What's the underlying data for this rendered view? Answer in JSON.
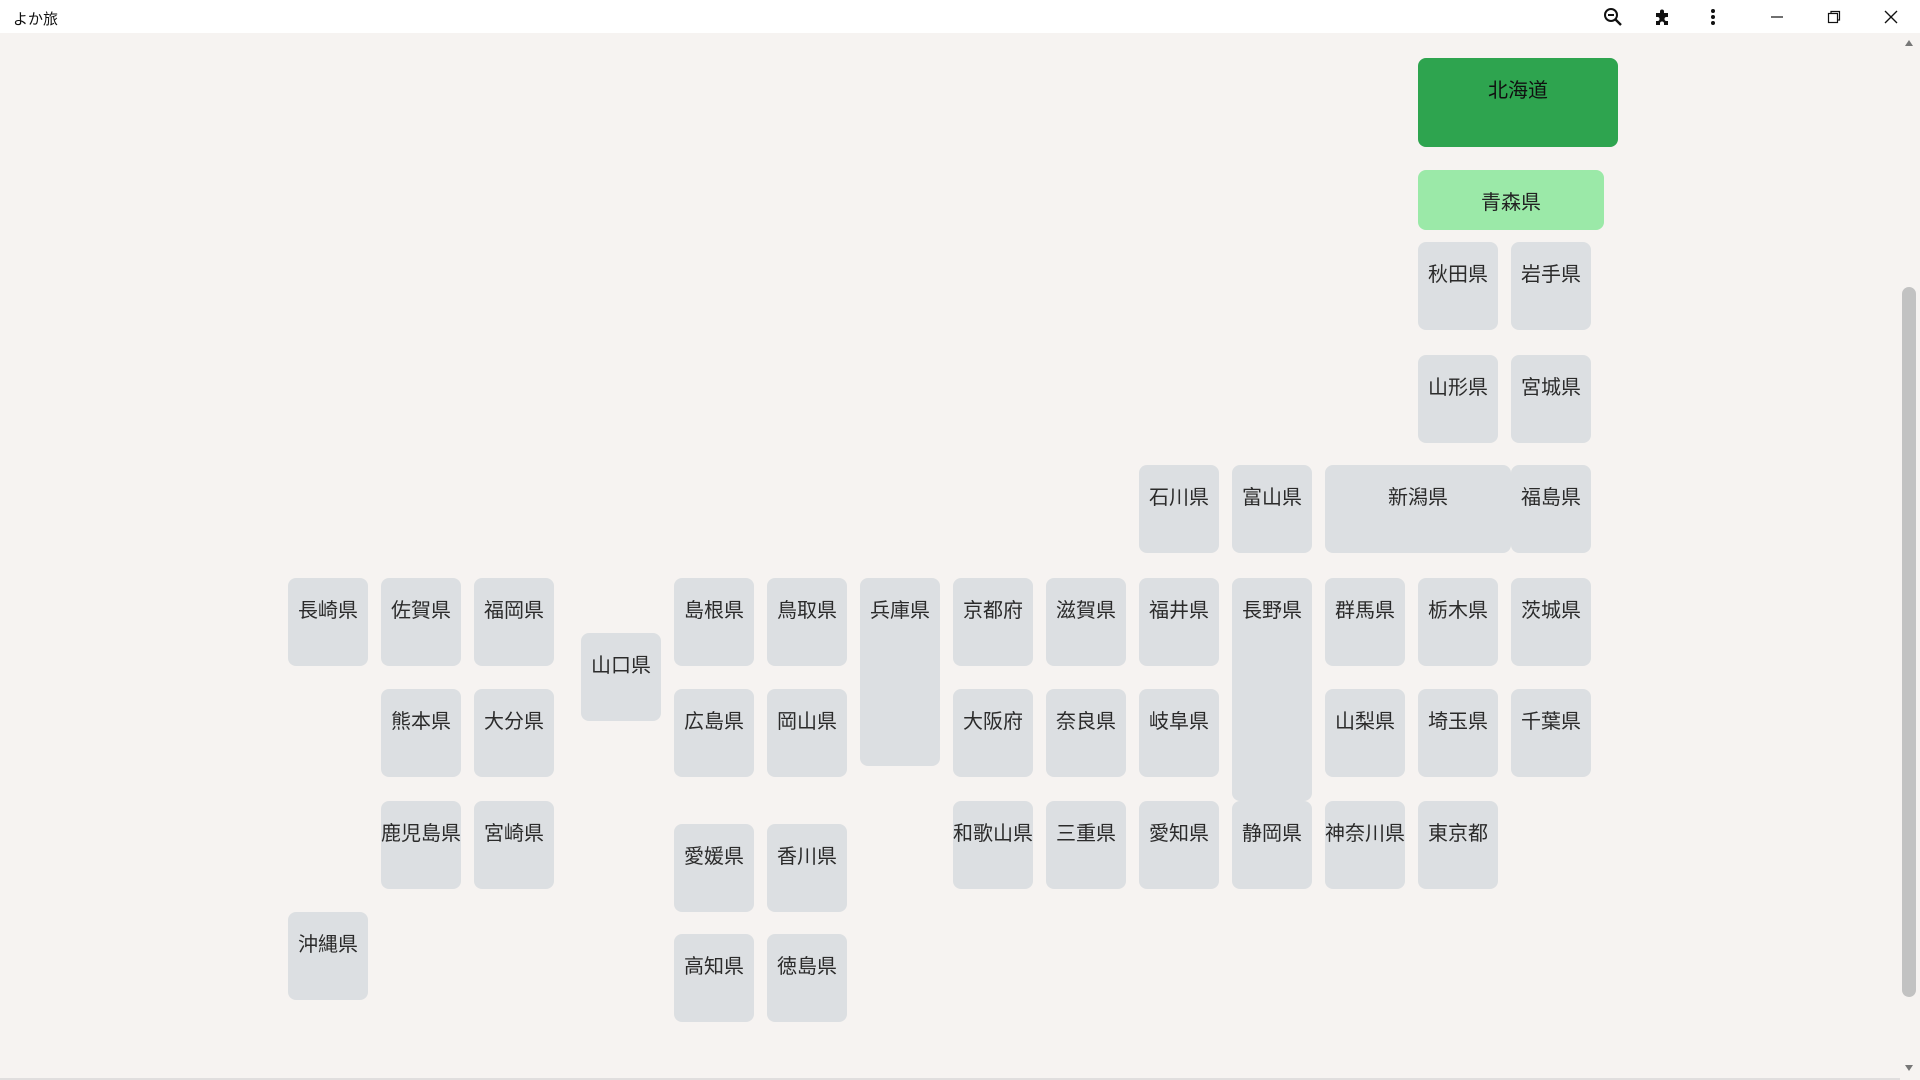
{
  "window": {
    "title": "よか旅"
  },
  "toolbar": {
    "icons": [
      "zoom-out-icon",
      "extensions-icon",
      "more-vert-icon"
    ],
    "window_controls": [
      "minimize-icon",
      "restore-icon",
      "close-icon"
    ]
  },
  "colors": {
    "visited_strong": "#2ea44f",
    "visited_light": "#9be9a8",
    "default_tile": "#dcdfe2",
    "background": "#f6f3f1"
  },
  "prefectures": {
    "hokkaido": "北海道",
    "aomori": "青森県",
    "akita": "秋田県",
    "iwate": "岩手県",
    "yamagata": "山形県",
    "miyagi": "宮城県",
    "ishikawa": "石川県",
    "toyama": "富山県",
    "niigata": "新潟県",
    "fukushima": "福島県",
    "nagasaki": "長崎県",
    "saga": "佐賀県",
    "fukuoka": "福岡県",
    "yamaguchi": "山口県",
    "shimane": "島根県",
    "tottori": "鳥取県",
    "hyogo": "兵庫県",
    "kyoto": "京都府",
    "shiga": "滋賀県",
    "fukui": "福井県",
    "nagano": "長野県",
    "gunma": "群馬県",
    "tochigi": "栃木県",
    "ibaraki": "茨城県",
    "kumamoto": "熊本県",
    "oita": "大分県",
    "hiroshima": "広島県",
    "okayama": "岡山県",
    "osaka": "大阪府",
    "nara": "奈良県",
    "gifu": "岐阜県",
    "yamanashi": "山梨県",
    "saitama": "埼玉県",
    "chiba": "千葉県",
    "kagoshima": "鹿児島県",
    "miyazaki": "宮崎県",
    "ehime": "愛媛県",
    "kagawa": "香川県",
    "wakayama": "和歌山県",
    "mie": "三重県",
    "aichi": "愛知県",
    "shizuoka": "静岡県",
    "kanagawa": "神奈川県",
    "tokyo": "東京都",
    "okinawa": "沖縄県",
    "kochi": "高知県",
    "tokushima": "徳島県"
  }
}
